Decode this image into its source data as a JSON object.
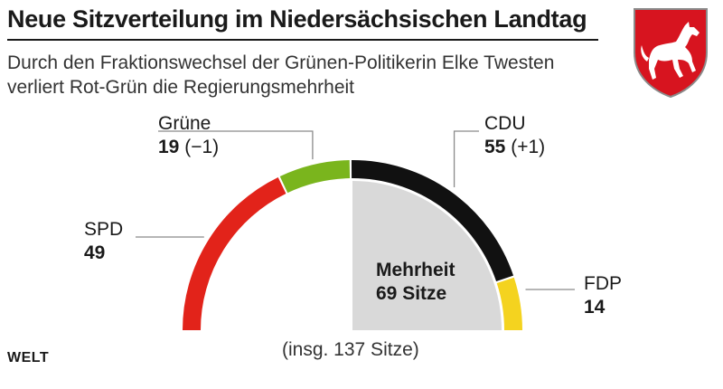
{
  "header": {
    "title": "Neue Sitzverteilung im Niedersächsischen Landtag",
    "subtitle_line1": "Durch den Fraktionswechsel der Grünen-Politikerin Elke Twesten",
    "subtitle_line2": "verliert Rot-Grün die Regierungsmehrheit"
  },
  "center": {
    "line1": "Mehrheit",
    "line2": "69 Sitze"
  },
  "footer": {
    "total": "(insg. 137 Sitze)",
    "source": "WELT"
  },
  "colors": {
    "SPD": "#e2231a",
    "Grüne": "#7ab51d",
    "CDU": "#111111",
    "FDP": "#f4d31f",
    "majority_area": "#d9d9d9",
    "crest_red": "#d7141f"
  },
  "chart_data": {
    "type": "pie",
    "variant": "semicircle-parliament",
    "total": 137,
    "majority": 69,
    "parties": [
      {
        "name": "SPD",
        "seats": 49,
        "change": ""
      },
      {
        "name": "Grüne",
        "seats": 19,
        "change": "(−1)"
      },
      {
        "name": "CDU",
        "seats": 55,
        "change": "(+1)"
      },
      {
        "name": "FDP",
        "seats": 14,
        "change": ""
      }
    ]
  }
}
